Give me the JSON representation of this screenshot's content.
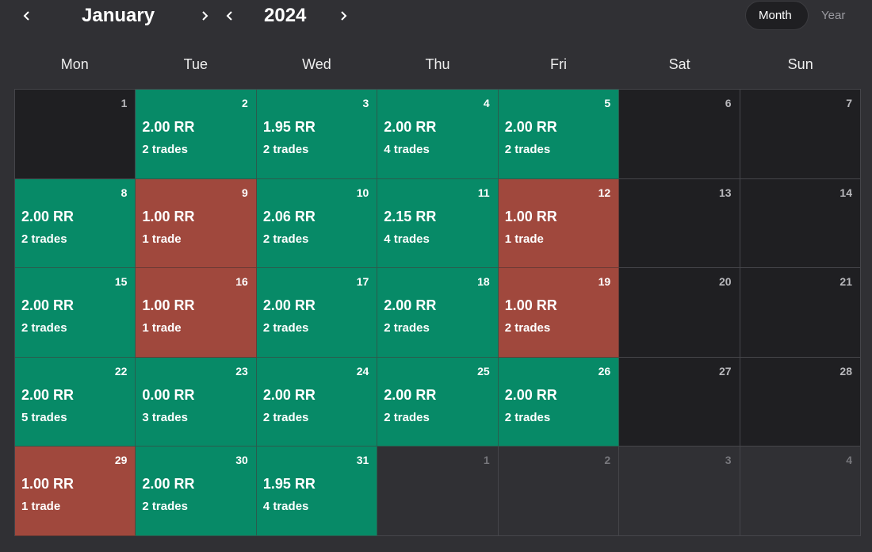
{
  "header": {
    "month": "January",
    "year": "2024",
    "views": [
      "Month",
      "Year"
    ],
    "active_view": 0
  },
  "weekdays": [
    "Mon",
    "Tue",
    "Wed",
    "Thu",
    "Fri",
    "Sat",
    "Sun"
  ],
  "weeks": [
    [
      {
        "day": 1,
        "kind": "none"
      },
      {
        "day": 2,
        "rr": "2.00 RR",
        "trades": "2 trades",
        "kind": "win"
      },
      {
        "day": 3,
        "rr": "1.95 RR",
        "trades": "2 trades",
        "kind": "win"
      },
      {
        "day": 4,
        "rr": "2.00 RR",
        "trades": "4 trades",
        "kind": "win"
      },
      {
        "day": 5,
        "rr": "2.00 RR",
        "trades": "2 trades",
        "kind": "win"
      },
      {
        "day": 6,
        "kind": "none"
      },
      {
        "day": 7,
        "kind": "none"
      }
    ],
    [
      {
        "day": 8,
        "rr": "2.00 RR",
        "trades": "2 trades",
        "kind": "win"
      },
      {
        "day": 9,
        "rr": "1.00 RR",
        "trades": "1 trade",
        "kind": "loss"
      },
      {
        "day": 10,
        "rr": "2.06 RR",
        "trades": "2 trades",
        "kind": "win"
      },
      {
        "day": 11,
        "rr": "2.15 RR",
        "trades": "4 trades",
        "kind": "win"
      },
      {
        "day": 12,
        "rr": "1.00 RR",
        "trades": "1 trade",
        "kind": "loss"
      },
      {
        "day": 13,
        "kind": "none"
      },
      {
        "day": 14,
        "kind": "none"
      }
    ],
    [
      {
        "day": 15,
        "rr": "2.00 RR",
        "trades": "2 trades",
        "kind": "win"
      },
      {
        "day": 16,
        "rr": "1.00 RR",
        "trades": "1 trade",
        "kind": "loss"
      },
      {
        "day": 17,
        "rr": "2.00 RR",
        "trades": "2 trades",
        "kind": "win"
      },
      {
        "day": 18,
        "rr": "2.00 RR",
        "trades": "2 trades",
        "kind": "win"
      },
      {
        "day": 19,
        "rr": "1.00 RR",
        "trades": "2 trades",
        "kind": "loss"
      },
      {
        "day": 20,
        "kind": "none"
      },
      {
        "day": 21,
        "kind": "none"
      }
    ],
    [
      {
        "day": 22,
        "rr": "2.00 RR",
        "trades": "5 trades",
        "kind": "win"
      },
      {
        "day": 23,
        "rr": "0.00 RR",
        "trades": "3 trades",
        "kind": "win"
      },
      {
        "day": 24,
        "rr": "2.00 RR",
        "trades": "2 trades",
        "kind": "win"
      },
      {
        "day": 25,
        "rr": "2.00 RR",
        "trades": "2 trades",
        "kind": "win"
      },
      {
        "day": 26,
        "rr": "2.00 RR",
        "trades": "2 trades",
        "kind": "win"
      },
      {
        "day": 27,
        "kind": "none"
      },
      {
        "day": 28,
        "kind": "none"
      }
    ],
    [
      {
        "day": 29,
        "rr": "1.00 RR",
        "trades": "1 trade",
        "kind": "loss"
      },
      {
        "day": 30,
        "rr": "2.00 RR",
        "trades": "2 trades",
        "kind": "win"
      },
      {
        "day": 31,
        "rr": "1.95 RR",
        "trades": "4 trades",
        "kind": "win"
      },
      {
        "day": 1,
        "kind": "outside"
      },
      {
        "day": 2,
        "kind": "outside"
      },
      {
        "day": 3,
        "kind": "outside"
      },
      {
        "day": 4,
        "kind": "outside"
      }
    ]
  ]
}
